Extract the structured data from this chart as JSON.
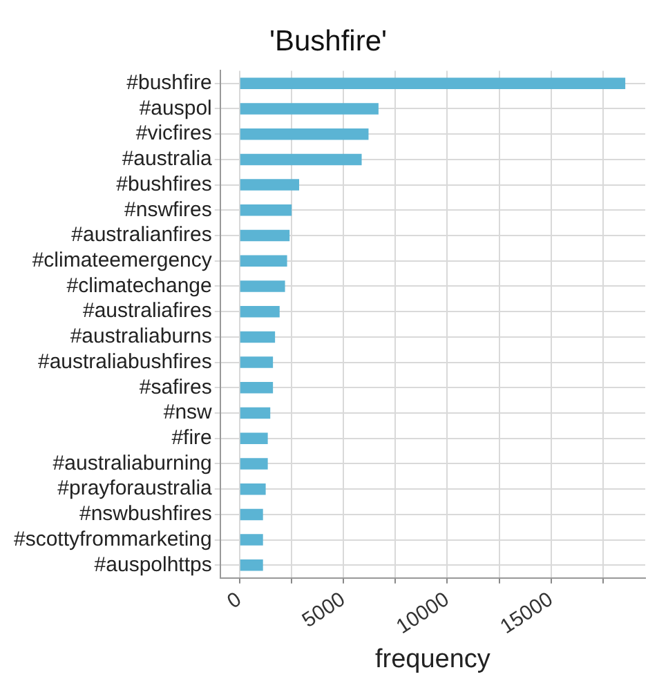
{
  "chart_data": {
    "type": "bar",
    "title": "'Bushfire'",
    "xlabel": "frequency",
    "orientation": "horizontal",
    "categories": [
      "#bushfire",
      "#auspol",
      "#vicfires",
      "#australia",
      "#bushfires",
      "#nswfires",
      "#australianfires",
      "#climateemergency",
      "#climatechange",
      "#australiafires",
      "#australiaburns",
      "#australiabushfires",
      "#safires",
      "#nsw",
      "#fire",
      "#australiaburning",
      "#prayforaustralia",
      "#nswbushfires",
      "#scottyfrommarketing",
      "#auspolhttps"
    ],
    "values": [
      18570,
      6690,
      6210,
      5880,
      2870,
      2510,
      2410,
      2290,
      2190,
      1930,
      1710,
      1610,
      1610,
      1480,
      1360,
      1360,
      1260,
      1130,
      1130,
      1130
    ],
    "color": "#5bb4d4",
    "xlim": [
      -930,
      19530
    ],
    "xticks": [
      0,
      {
        "value": 2500,
        "label": null
      },
      5000,
      {
        "value": 7500,
        "label": null
      },
      10000,
      {
        "value": 12500,
        "label": null
      },
      15000,
      {
        "value": 17500,
        "label": null
      }
    ],
    "grid": true,
    "legend": false
  }
}
